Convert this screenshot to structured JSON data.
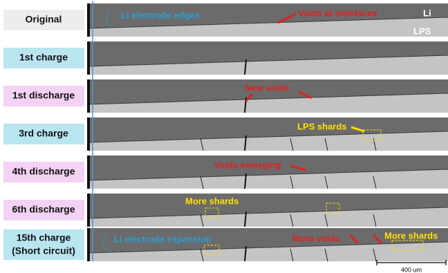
{
  "rows": [
    {
      "label": "Original",
      "annotations": [
        "Li electrode edges",
        "Voids at interfaces",
        "Li",
        "LPS"
      ]
    },
    {
      "label": "1st charge",
      "annotations": []
    },
    {
      "label": "1st discharge",
      "annotations": [
        "New voids"
      ]
    },
    {
      "label": "3rd charge",
      "annotations": [
        "LPS shards"
      ]
    },
    {
      "label": "4th discharge",
      "annotations": [
        "Voids emerging"
      ]
    },
    {
      "label": "6th discharge",
      "annotations": [
        "More shards"
      ]
    },
    {
      "label": "15th charge",
      "sublabel": "(Short circuit)",
      "annotations": [
        "Li electrode expansion",
        "More voids",
        "More shards"
      ]
    }
  ],
  "scale_bar": "400 um"
}
